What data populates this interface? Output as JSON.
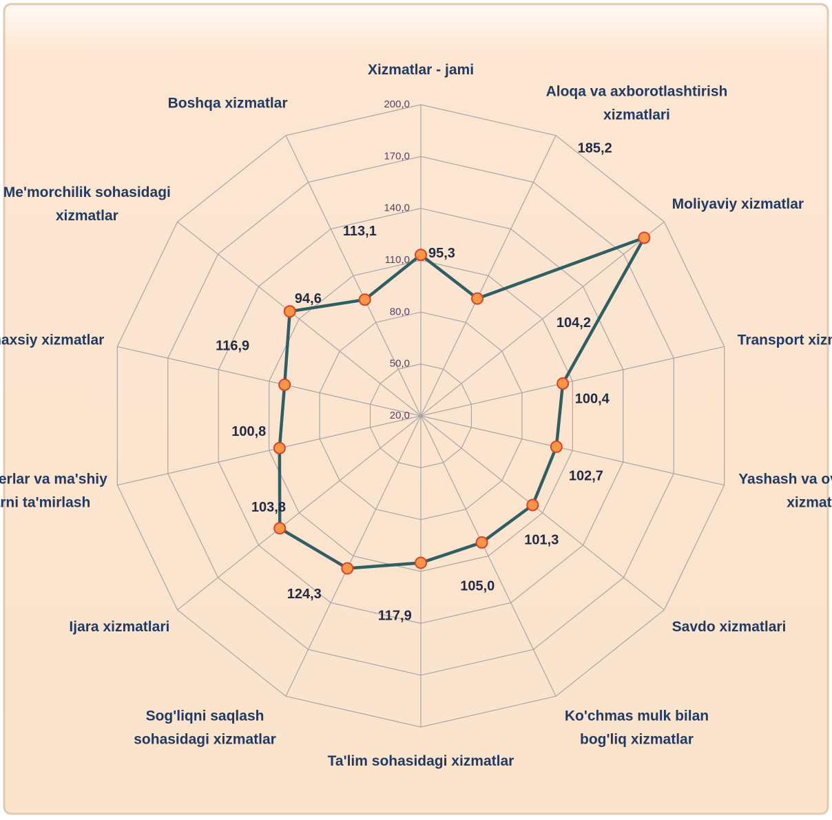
{
  "chart_data": {
    "type": "radar",
    "categories": [
      [
        "Xizmatlar - jami"
      ],
      [
        "Aloqa va axborotlashtirish",
        "xizmatlari"
      ],
      [
        "Moliyaviy xizmatlar"
      ],
      [
        "Transport xizmatlari"
      ],
      [
        "Yashash va ovqatlanish",
        "xizmatlari"
      ],
      [
        "Savdo xizmatlari"
      ],
      [
        "Ko'chmas mulk bilan",
        "bog'liq xizmatlar"
      ],
      [
        "Ta'lim sohasidagi xizmatlar"
      ],
      [
        "Sog'liqni saqlash",
        "sohasidagi xizmatlar"
      ],
      [
        "Ijara xizmatlari"
      ],
      [
        "Kompyuterlar va ma'shiy",
        "tovarlarni ta'mirlash"
      ],
      [
        "Shaxsiy xizmatlar"
      ],
      [
        "Me'morchilik  sohasidagi",
        "xizmatlar"
      ],
      [
        "Boshqa xizmatlar"
      ]
    ],
    "values": [
      113.1,
      95.3,
      185.2,
      104.2,
      100.4,
      102.7,
      101.3,
      105.0,
      117.9,
      124.3,
      103.8,
      100.8,
      116.9,
      94.6
    ],
    "value_labels": [
      "113,1",
      "95,3",
      "185,2",
      "104,2",
      "100,4",
      "102,7",
      "101,3",
      "105,0",
      "117,9",
      "124,3",
      "103,8",
      "100,8",
      "116,9",
      "94,6"
    ],
    "color": "#2f5f63",
    "marker_color": "#f79646",
    "rlim": [
      20,
      200
    ],
    "rticks": [
      {
        "value": 20,
        "label": "20,0"
      },
      {
        "value": 50,
        "label": "50,0"
      },
      {
        "value": 80,
        "label": "80,0"
      },
      {
        "value": 110,
        "label": "110,0"
      },
      {
        "value": 140,
        "label": "140,0"
      },
      {
        "value": 170,
        "label": "170,0"
      },
      {
        "value": 200,
        "label": "200,0"
      }
    ],
    "grid": true
  }
}
